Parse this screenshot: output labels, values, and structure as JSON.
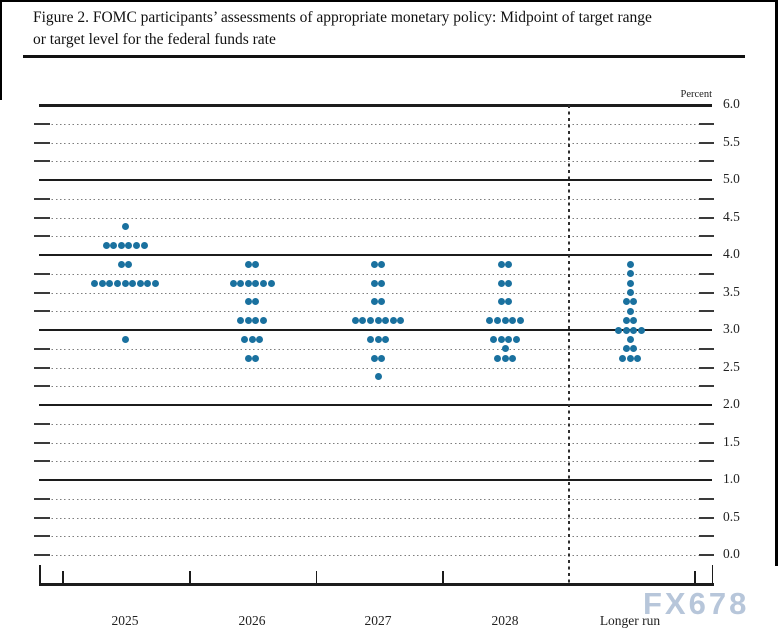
{
  "title": {
    "line1": "Figure 2. FOMC participants’ assessments of appropriate monetary policy: Midpoint of target range",
    "line2": "or target level for the federal funds rate"
  },
  "watermark": "FX678",
  "axis": {
    "percent_label": "Percent",
    "ytick_labels": [
      "6.0",
      "5.5",
      "5.0",
      "4.5",
      "4.0",
      "3.5",
      "3.0",
      "2.5",
      "2.0",
      "1.5",
      "1.0",
      "0.5",
      "0.0"
    ]
  },
  "chart_data": {
    "type": "scatter",
    "subtype": "fomc-dot-plot",
    "title": "Figure 2. FOMC participants’ assessments of appropriate monetary policy: Midpoint of target range or target level for the federal funds rate",
    "xlabel": "",
    "ylabel": "Percent",
    "ylim": [
      0.0,
      6.0
    ],
    "ytick_minor_step": 0.25,
    "ytick_label_step": 0.5,
    "solid_gridlines_at": [
      6.0,
      5.0,
      4.0,
      3.0,
      2.0,
      1.0
    ],
    "grid": "dotted-quarters",
    "dot_color": "#1a719f",
    "participants_per_column": 19,
    "categories": [
      "2025",
      "2026",
      "2027",
      "2028",
      "Longer run"
    ],
    "series": [
      {
        "category": "2025",
        "dots": [
          {
            "rate": 4.375,
            "count": 1
          },
          {
            "rate": 4.125,
            "count": 6
          },
          {
            "rate": 3.875,
            "count": 2
          },
          {
            "rate": 3.625,
            "count": 9
          },
          {
            "rate": 2.875,
            "count": 1
          }
        ]
      },
      {
        "category": "2026",
        "dots": [
          {
            "rate": 3.875,
            "count": 2
          },
          {
            "rate": 3.625,
            "count": 6
          },
          {
            "rate": 3.375,
            "count": 2
          },
          {
            "rate": 3.125,
            "count": 4
          },
          {
            "rate": 2.875,
            "count": 3
          },
          {
            "rate": 2.625,
            "count": 2
          }
        ]
      },
      {
        "category": "2027",
        "dots": [
          {
            "rate": 3.875,
            "count": 2
          },
          {
            "rate": 3.625,
            "count": 2
          },
          {
            "rate": 3.375,
            "count": 2
          },
          {
            "rate": 3.125,
            "count": 7
          },
          {
            "rate": 2.875,
            "count": 3
          },
          {
            "rate": 2.625,
            "count": 2
          },
          {
            "rate": 2.375,
            "count": 1
          }
        ]
      },
      {
        "category": "2028",
        "dots": [
          {
            "rate": 3.875,
            "count": 2
          },
          {
            "rate": 3.625,
            "count": 2
          },
          {
            "rate": 3.375,
            "count": 2
          },
          {
            "rate": 3.125,
            "count": 5
          },
          {
            "rate": 2.875,
            "count": 4
          },
          {
            "rate": 2.75,
            "count": 1
          },
          {
            "rate": 2.625,
            "count": 3
          }
        ]
      },
      {
        "category": "Longer run",
        "dots": [
          {
            "rate": 3.875,
            "count": 1
          },
          {
            "rate": 3.75,
            "count": 1
          },
          {
            "rate": 3.625,
            "count": 1
          },
          {
            "rate": 3.5,
            "count": 1
          },
          {
            "rate": 3.375,
            "count": 2
          },
          {
            "rate": 3.25,
            "count": 1
          },
          {
            "rate": 3.125,
            "count": 2
          },
          {
            "rate": 3.0,
            "count": 4
          },
          {
            "rate": 2.875,
            "count": 1
          },
          {
            "rate": 2.75,
            "count": 2
          },
          {
            "rate": 2.625,
            "count": 3
          }
        ]
      }
    ]
  }
}
